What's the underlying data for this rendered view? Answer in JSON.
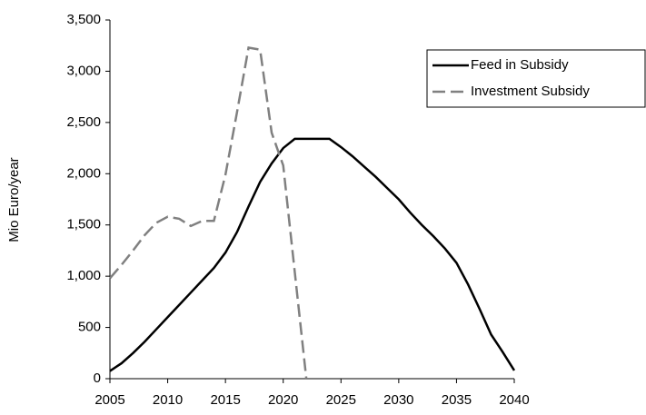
{
  "chart_data": {
    "type": "line",
    "y_label": "Mio Euro/year",
    "x": [
      2005,
      2006,
      2007,
      2008,
      2009,
      2010,
      2011,
      2012,
      2013,
      2014,
      2015,
      2016,
      2017,
      2018,
      2019,
      2020,
      2021,
      2022,
      2023,
      2024,
      2025,
      2026,
      2027,
      2028,
      2029,
      2030,
      2031,
      2032,
      2033,
      2034,
      2035,
      2036,
      2037,
      2038,
      2039,
      2040
    ],
    "series": [
      {
        "name": "Feed in Subsidy",
        "color": "#000000",
        "dash": false,
        "values": [
          75,
          150,
          250,
          360,
          480,
          600,
          720,
          840,
          960,
          1080,
          1230,
          1430,
          1680,
          1920,
          2100,
          2250,
          2340,
          2340,
          2340,
          2340,
          2260,
          2170,
          2070,
          1970,
          1860,
          1750,
          1620,
          1500,
          1390,
          1270,
          1130,
          920,
          680,
          430,
          260,
          80
        ]
      },
      {
        "name": "Investment Subsidy",
        "color": "#808080",
        "dash": true,
        "values": [
          980,
          1110,
          1250,
          1400,
          1520,
          1580,
          1560,
          1490,
          1540,
          1540,
          1990,
          2600,
          3230,
          3210,
          2400,
          2080,
          1040,
          0,
          null,
          null,
          null,
          null,
          null,
          null,
          null,
          null,
          null,
          null,
          null,
          null,
          null,
          null,
          null,
          null,
          null,
          null
        ]
      }
    ],
    "xlim": [
      2005,
      2040
    ],
    "xticks": [
      2005,
      2010,
      2015,
      2020,
      2025,
      2030,
      2035,
      2040
    ],
    "ylim": [
      0,
      3500
    ],
    "yticks": [
      0,
      500,
      {
        "value": 1000,
        "label": "1,000"
      },
      {
        "value": 1500,
        "label": "1,500"
      },
      {
        "value": 2000,
        "label": "2,000"
      },
      {
        "value": 2500,
        "label": "2,500"
      },
      {
        "value": 3000,
        "label": "3,000"
      },
      {
        "value": 3500,
        "label": "3,500"
      }
    ],
    "legend": "top-right"
  }
}
